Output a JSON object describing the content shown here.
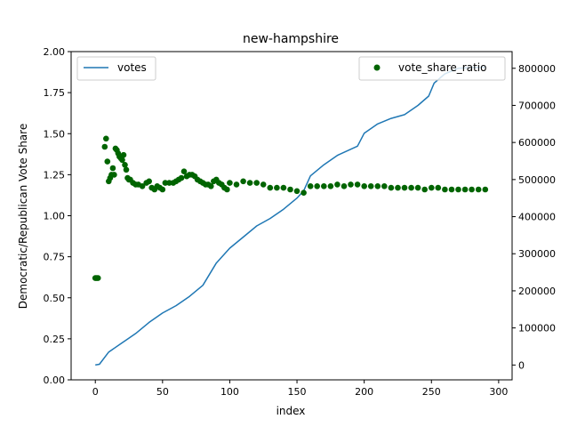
{
  "chart_data": {
    "type": "line",
    "title": "new-hampshire",
    "xlabel": "index",
    "ylabel": "Democratic/Republican Vote Share",
    "xlim": [
      -18,
      310
    ],
    "xticks": [
      0,
      50,
      100,
      150,
      200,
      250,
      300
    ],
    "ylim_left": [
      0.0,
      2.0
    ],
    "yticks_left": [
      "0.00",
      "0.25",
      "0.50",
      "0.75",
      "1.00",
      "1.25",
      "1.50",
      "1.75",
      "2.00"
    ],
    "ylim_right": [
      -40000,
      845000
    ],
    "yticks_right": [
      0,
      100000,
      200000,
      300000,
      400000,
      500000,
      600000,
      700000,
      800000
    ],
    "legend_left": "top-left",
    "legend_right": "top-right",
    "colors": {
      "votes": "#1f77b4",
      "vote_share_ratio": "#006400"
    },
    "series": [
      {
        "name": "votes",
        "axis": "right",
        "style": "line",
        "x": [
          0,
          3,
          10,
          20,
          30,
          40,
          50,
          60,
          70,
          80,
          90,
          100,
          110,
          120,
          130,
          140,
          150,
          155,
          160,
          170,
          180,
          195,
          200,
          210,
          220,
          230,
          240,
          248,
          252,
          260,
          270,
          280,
          290
        ],
        "y": [
          0,
          2000,
          35000,
          60000,
          85000,
          115000,
          140000,
          160000,
          185000,
          215000,
          275000,
          315000,
          345000,
          375000,
          395000,
          420000,
          450000,
          470000,
          510000,
          540000,
          565000,
          590000,
          625000,
          650000,
          665000,
          675000,
          700000,
          725000,
          760000,
          785000,
          800000,
          802000,
          803000
        ]
      },
      {
        "name": "vote_share_ratio",
        "axis": "left",
        "style": "scatter",
        "x": [
          0,
          1,
          2,
          7,
          8,
          9,
          10,
          11,
          12,
          13,
          14,
          15,
          16,
          17,
          18,
          19,
          20,
          21,
          22,
          23,
          24,
          25,
          26,
          28,
          30,
          32,
          35,
          38,
          40,
          42,
          44,
          46,
          48,
          50,
          52,
          55,
          58,
          60,
          62,
          64,
          66,
          68,
          70,
          72,
          74,
          76,
          78,
          80,
          82,
          84,
          86,
          88,
          90,
          92,
          94,
          96,
          98,
          100,
          105,
          110,
          115,
          120,
          125,
          130,
          135,
          140,
          145,
          150,
          155,
          160,
          165,
          170,
          175,
          180,
          185,
          190,
          195,
          200,
          205,
          210,
          215,
          220,
          225,
          230,
          235,
          240,
          245,
          250,
          255,
          260,
          265,
          270,
          275,
          280,
          285,
          290
        ],
        "y": [
          0.62,
          0.62,
          0.62,
          1.42,
          1.47,
          1.33,
          1.21,
          1.23,
          1.25,
          1.29,
          1.25,
          1.41,
          1.4,
          1.38,
          1.36,
          1.35,
          1.34,
          1.37,
          1.31,
          1.28,
          1.23,
          1.22,
          1.22,
          1.2,
          1.19,
          1.19,
          1.18,
          1.2,
          1.21,
          1.17,
          1.16,
          1.18,
          1.17,
          1.16,
          1.2,
          1.2,
          1.2,
          1.21,
          1.22,
          1.23,
          1.27,
          1.24,
          1.25,
          1.25,
          1.24,
          1.22,
          1.21,
          1.2,
          1.19,
          1.19,
          1.18,
          1.21,
          1.22,
          1.2,
          1.19,
          1.17,
          1.16,
          1.2,
          1.19,
          1.21,
          1.2,
          1.2,
          1.19,
          1.17,
          1.17,
          1.17,
          1.16,
          1.15,
          1.14,
          1.18,
          1.18,
          1.18,
          1.18,
          1.19,
          1.18,
          1.19,
          1.19,
          1.18,
          1.18,
          1.18,
          1.18,
          1.17,
          1.17,
          1.17,
          1.17,
          1.17,
          1.16,
          1.17,
          1.17,
          1.16,
          1.16,
          1.16,
          1.16,
          1.16,
          1.16,
          1.16
        ]
      }
    ]
  }
}
